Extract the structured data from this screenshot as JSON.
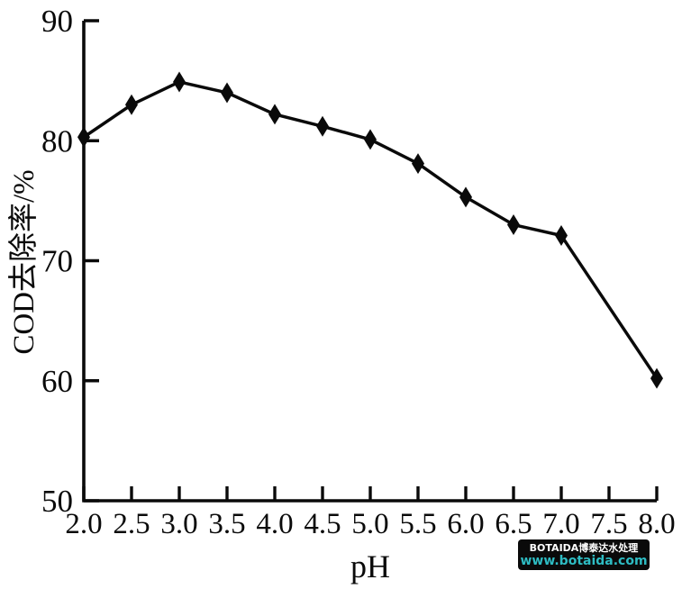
{
  "chart_data": {
    "type": "line",
    "title": "",
    "xlabel": "pH",
    "ylabel": "COD去除率/%",
    "x": [
      2.0,
      2.5,
      3.0,
      3.5,
      4.0,
      4.5,
      5.0,
      5.5,
      6.0,
      6.5,
      7.0,
      8.0
    ],
    "y": [
      80.3,
      83.0,
      84.9,
      84.0,
      82.2,
      81.2,
      80.1,
      78.1,
      75.3,
      73.0,
      72.1,
      60.2
    ],
    "series_name": "COD removal rate",
    "xlim": [
      2.0,
      8.0
    ],
    "ylim": [
      50,
      90
    ],
    "x_tick_labels": [
      "2.0",
      "2.5",
      "3.0",
      "3.5",
      "4.0",
      "4.5",
      "5.0",
      "5.5",
      "6.0",
      "6.5",
      "7.0",
      "7.5",
      "8.0"
    ],
    "x_tick_values": [
      2.0,
      2.5,
      3.0,
      3.5,
      4.0,
      4.5,
      5.0,
      5.5,
      6.0,
      6.5,
      7.0,
      7.5,
      8.0
    ],
    "y_tick_labels": [
      "50",
      "60",
      "70",
      "80",
      "90"
    ],
    "y_tick_values": [
      50,
      60,
      70,
      80,
      90
    ],
    "marker": "diamond",
    "line_color": "#0a0a0a",
    "marker_color": "#0a0a0a",
    "axis_color": "#0a0a0a",
    "background_color": "#ffffff",
    "grid": false,
    "legend": false
  },
  "watermark": {
    "line1": "BOTAIDA博泰达水处理",
    "line2": "www.botaida.com",
    "bg_color": "#0a0a0a",
    "line1_color": "#ffffff",
    "line2_color": "#2ebcc3"
  }
}
